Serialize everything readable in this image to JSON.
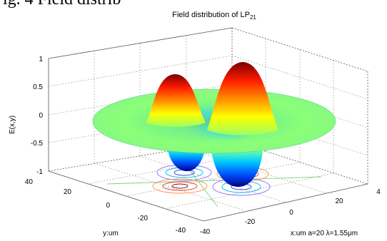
{
  "caption_fragment": "ig. 4 Field distrib",
  "chart_data": {
    "type": "surface3d",
    "title_main": "Field distribution of LP",
    "title_sub": "21",
    "zlabel": "E(x,y)",
    "ylabel": "y:um",
    "xlabel": "x:um a=20 λ=1.55μm",
    "z_ticks": [
      "1",
      "0.5",
      "0",
      "-0.5",
      "-1"
    ],
    "y_ticks": [
      "40",
      "20",
      "0",
      "-20",
      "-40"
    ],
    "x_ticks": [
      "-40",
      "-20",
      "0",
      "20",
      "4"
    ],
    "xlim": [
      -40,
      40
    ],
    "ylim": [
      -40,
      40
    ],
    "zlim": [
      -1,
      1
    ],
    "grid": true,
    "colormap": "jet",
    "colors": {
      "max": "#8b0000",
      "high": "#ff2000",
      "mid": "#70ff80",
      "low": "#0040ff",
      "min": "#00007a"
    },
    "lobes": [
      {
        "x": -15,
        "y": 5,
        "z": 0.8
      },
      {
        "x": 15,
        "y": -5,
        "z": 0.95
      },
      {
        "x": -5,
        "y": 20,
        "z": -0.85
      },
      {
        "x": 5,
        "y": -20,
        "z": -0.95
      }
    ]
  }
}
